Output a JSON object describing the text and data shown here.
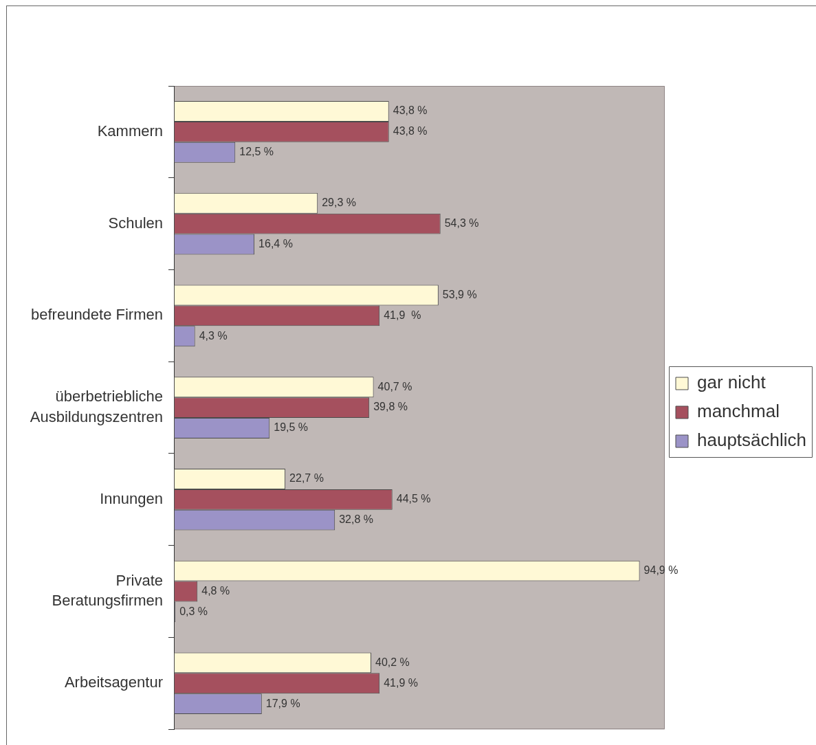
{
  "chart_data": {
    "type": "bar",
    "orientation": "horizontal",
    "categories": [
      "Kammern",
      "Schulen",
      "befreundete Firmen",
      "überbetriebliche Ausbildungszentren",
      "Innungen",
      "Private Beratungsfirmen",
      "Arbeitsagentur"
    ],
    "series": [
      {
        "name": "gar nicht",
        "color": "#fff9d6",
        "values": [
          43.8,
          29.3,
          53.9,
          40.7,
          22.7,
          94.9,
          40.2
        ],
        "value_labels": [
          "43,8 %",
          "29,3 %",
          "53,9 %",
          "40,7 %",
          "22,7 %",
          "94,9 %",
          "40,2 %"
        ]
      },
      {
        "name": "manchmal",
        "color": "#a5505e",
        "values": [
          43.8,
          54.3,
          41.9,
          39.8,
          44.5,
          4.8,
          41.9
        ],
        "value_labels": [
          "43,8 %",
          "54,3 %",
          "41,9  %",
          "39,8 %",
          "44,5 %",
          "4,8 %",
          "41,9 %"
        ]
      },
      {
        "name": "hauptsächlich",
        "color": "#9b93c7",
        "values": [
          12.5,
          16.4,
          4.3,
          19.5,
          32.8,
          0.3,
          17.9
        ],
        "value_labels": [
          "12,5 %",
          "16,4 %",
          "4,3 %",
          "19,5 %",
          "32,8 %",
          "0,3 %",
          "17,9 %"
        ]
      }
    ],
    "xlim": [
      0,
      100
    ],
    "tick_labels": "y",
    "legend": "right"
  }
}
